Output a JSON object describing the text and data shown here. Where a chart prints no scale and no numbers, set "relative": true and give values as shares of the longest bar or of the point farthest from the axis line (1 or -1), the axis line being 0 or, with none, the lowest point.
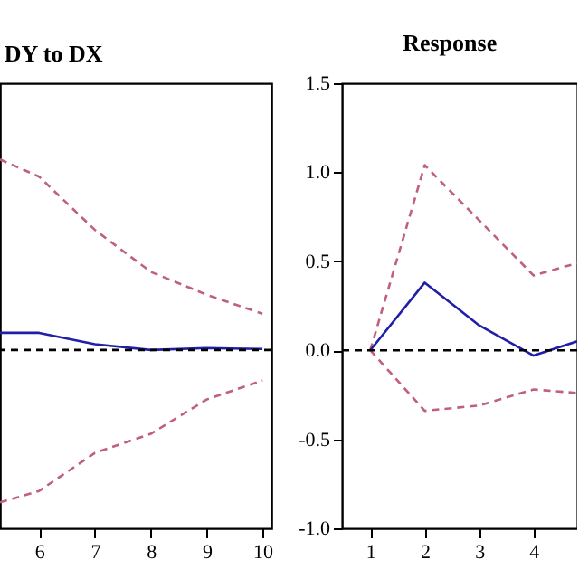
{
  "chart_data": [
    {
      "type": "line",
      "title": "DY to DX",
      "relative": true,
      "x": [
        5.3,
        6,
        7,
        8,
        9,
        10
      ],
      "xlim": [
        5.3,
        10.16
      ],
      "xticks": [
        6,
        7,
        8,
        9,
        10
      ],
      "tick_labels": "x",
      "grid": false,
      "series": [
        {
          "color": "#c06080",
          "line_style": "dashed",
          "values": [
            1,
            0.91,
            0.63,
            0.41,
            0.29,
            0.19
          ]
        },
        {
          "color": "#1f1fa8",
          "line_style": "solid",
          "values": [
            0.09,
            0.09,
            0.03,
            0,
            0.01,
            0.005
          ]
        },
        {
          "color": "#c06080",
          "line_style": "dashed",
          "values": [
            -0.8,
            -0.74,
            -0.54,
            -0.44,
            -0.26,
            -0.16
          ]
        }
      ],
      "ref_lines": [
        {
          "axis": "y",
          "value": 0,
          "color": "#000000",
          "line_style": "dashed"
        }
      ]
    },
    {
      "type": "line",
      "title": "Response",
      "x": [
        1,
        2,
        3,
        4,
        4.8
      ],
      "xlim": [
        0.48,
        4.8
      ],
      "xticks": [
        1,
        2,
        3,
        4
      ],
      "ylim": [
        -1,
        1.5
      ],
      "yticks": [
        {
          "value": -1,
          "label": "-1.0"
        },
        {
          "value": -0.5,
          "label": "-0.5"
        },
        {
          "value": 0,
          "label": "0.0"
        },
        {
          "value": 0.5,
          "label": "0.5"
        },
        {
          "value": 1,
          "label": "1.0"
        },
        {
          "value": 1.5,
          "label": "1.5"
        }
      ],
      "grid": false,
      "series": [
        {
          "color": "#c06080",
          "line_style": "dashed",
          "values": [
            0,
            1.04,
            0.73,
            0.42,
            0.49
          ]
        },
        {
          "color": "#1f1fa8",
          "line_style": "solid",
          "values": [
            0,
            0.38,
            0.14,
            -0.03,
            0.05
          ]
        },
        {
          "color": "#c06080",
          "line_style": "dashed",
          "values": [
            0,
            -0.34,
            -0.31,
            -0.22,
            -0.24
          ]
        }
      ],
      "ref_lines": [
        {
          "axis": "y",
          "value": 0,
          "color": "#000000",
          "line_style": "dashed"
        }
      ]
    }
  ]
}
